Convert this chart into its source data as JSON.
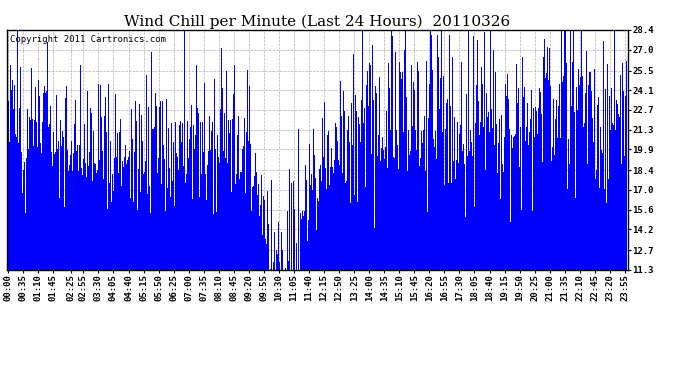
{
  "title": "Wind Chill per Minute (Last 24 Hours)  20110326",
  "copyright_text": "Copyright 2011 Cartronics.com",
  "bar_color": "#0000ff",
  "background_color": "#ffffff",
  "plot_bg_color": "#ffffff",
  "grid_color": "#b0b0b0",
  "yticks": [
    11.3,
    12.7,
    14.2,
    15.6,
    17.0,
    18.4,
    19.9,
    21.3,
    22.7,
    24.1,
    25.5,
    27.0,
    28.4
  ],
  "ymin": 11.3,
  "ymax": 28.4,
  "title_fontsize": 11,
  "copyright_fontsize": 6.5,
  "tick_fontsize": 6.5,
  "tick_minutes": [
    0,
    35,
    70,
    105,
    145,
    175,
    210,
    245,
    280,
    315,
    350,
    385,
    420,
    455,
    490,
    525,
    560,
    595,
    630,
    665,
    700,
    735,
    770,
    805,
    840,
    875,
    910,
    945,
    980,
    1015,
    1050,
    1085,
    1120,
    1155,
    1190,
    1225,
    1260,
    1295,
    1330,
    1365,
    1400,
    1435
  ],
  "tick_labels": [
    "00:00",
    "00:35",
    "01:10",
    "01:45",
    "02:25",
    "02:55",
    "03:30",
    "04:05",
    "04:40",
    "05:15",
    "05:50",
    "06:25",
    "07:00",
    "07:35",
    "08:10",
    "08:45",
    "09:20",
    "09:55",
    "10:30",
    "11:05",
    "11:40",
    "12:15",
    "12:50",
    "13:25",
    "14:00",
    "14:35",
    "15:10",
    "15:45",
    "16:20",
    "16:55",
    "17:30",
    "18:05",
    "18:40",
    "19:15",
    "19:50",
    "20:25",
    "21:00",
    "21:35",
    "22:10",
    "22:45",
    "23:20",
    "23:55"
  ]
}
